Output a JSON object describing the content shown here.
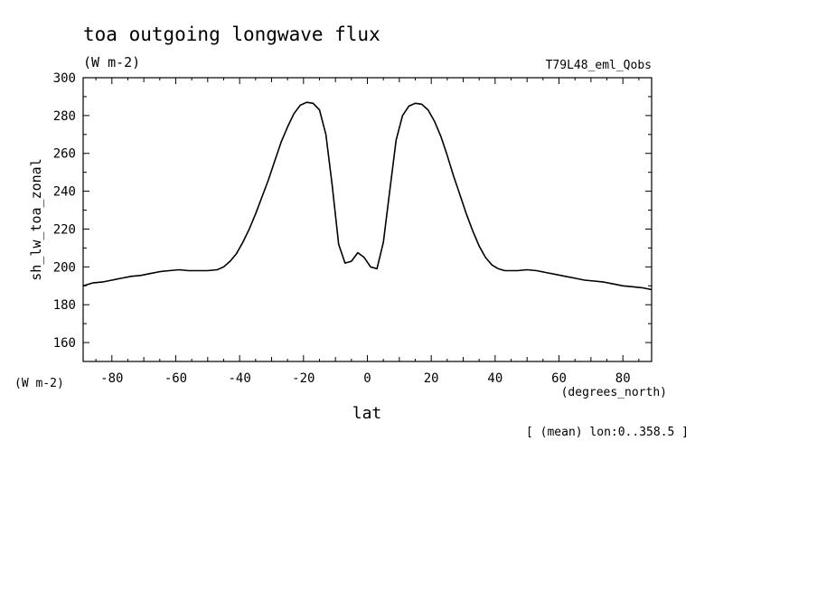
{
  "chart_data": {
    "type": "line",
    "title": "toa outgoing longwave flux",
    "units": "(W m-2)",
    "dataset": "T79L48_eml_Qobs",
    "ylabel": "sh_lw_toa_zonal",
    "ylabel_units": "(W m-2)",
    "xlabel": "lat",
    "xunits": "(degrees_north)",
    "footnote": "[ (mean) lon:0..358.5 ]",
    "xlim": [
      -89,
      89
    ],
    "ylim": [
      150,
      300
    ],
    "x_ticks": [
      -80,
      -60,
      -40,
      -20,
      0,
      20,
      40,
      60,
      80
    ],
    "x_tick_labels": [
      "-80",
      "-60",
      "-40",
      "-20",
      "0",
      "20",
      "40",
      "60",
      "80"
    ],
    "y_ticks": [
      160,
      180,
      200,
      220,
      240,
      260,
      280,
      300
    ],
    "y_tick_labels": [
      "160",
      "180",
      "200",
      "220",
      "240",
      "260",
      "280",
      "300"
    ],
    "grid": false,
    "legend": "none",
    "line_color": "#000000",
    "series": [
      {
        "x": [
          -89,
          -86,
          -83,
          -80,
          -77,
          -74,
          -71,
          -68,
          -65,
          -62,
          -59,
          -56,
          -53,
          -50,
          -47,
          -45,
          -43,
          -41,
          -39,
          -37,
          -35,
          -33,
          -31,
          -29,
          -27,
          -25,
          -23,
          -21,
          -19,
          -17,
          -15,
          -13,
          -11,
          -9,
          -7,
          -5,
          -3,
          -1,
          1,
          3,
          5,
          7,
          9,
          11,
          13,
          15,
          17,
          19,
          21,
          23,
          25,
          27,
          29,
          31,
          33,
          35,
          37,
          39,
          41,
          43,
          45,
          47,
          50,
          53,
          56,
          59,
          62,
          65,
          68,
          71,
          74,
          77,
          80,
          83,
          86,
          89
        ],
        "y": [
          190,
          191.5,
          192,
          193,
          194,
          195,
          195.5,
          196.5,
          197.5,
          198,
          198.5,
          198,
          198,
          198,
          198.5,
          200,
          203,
          207,
          213,
          220,
          228,
          237,
          246,
          256,
          266,
          274,
          281,
          285.5,
          287,
          286.5,
          283,
          270,
          243,
          212,
          202,
          203,
          207.5,
          205,
          200,
          199,
          213,
          240,
          267,
          280,
          285,
          286.5,
          286,
          283,
          277,
          269,
          259,
          248,
          238,
          228,
          219,
          211,
          205,
          201,
          199,
          198,
          198,
          198,
          198.5,
          198,
          197,
          196,
          195,
          194,
          193,
          192.5,
          192,
          191,
          190,
          189.5,
          189,
          188
        ]
      }
    ]
  }
}
